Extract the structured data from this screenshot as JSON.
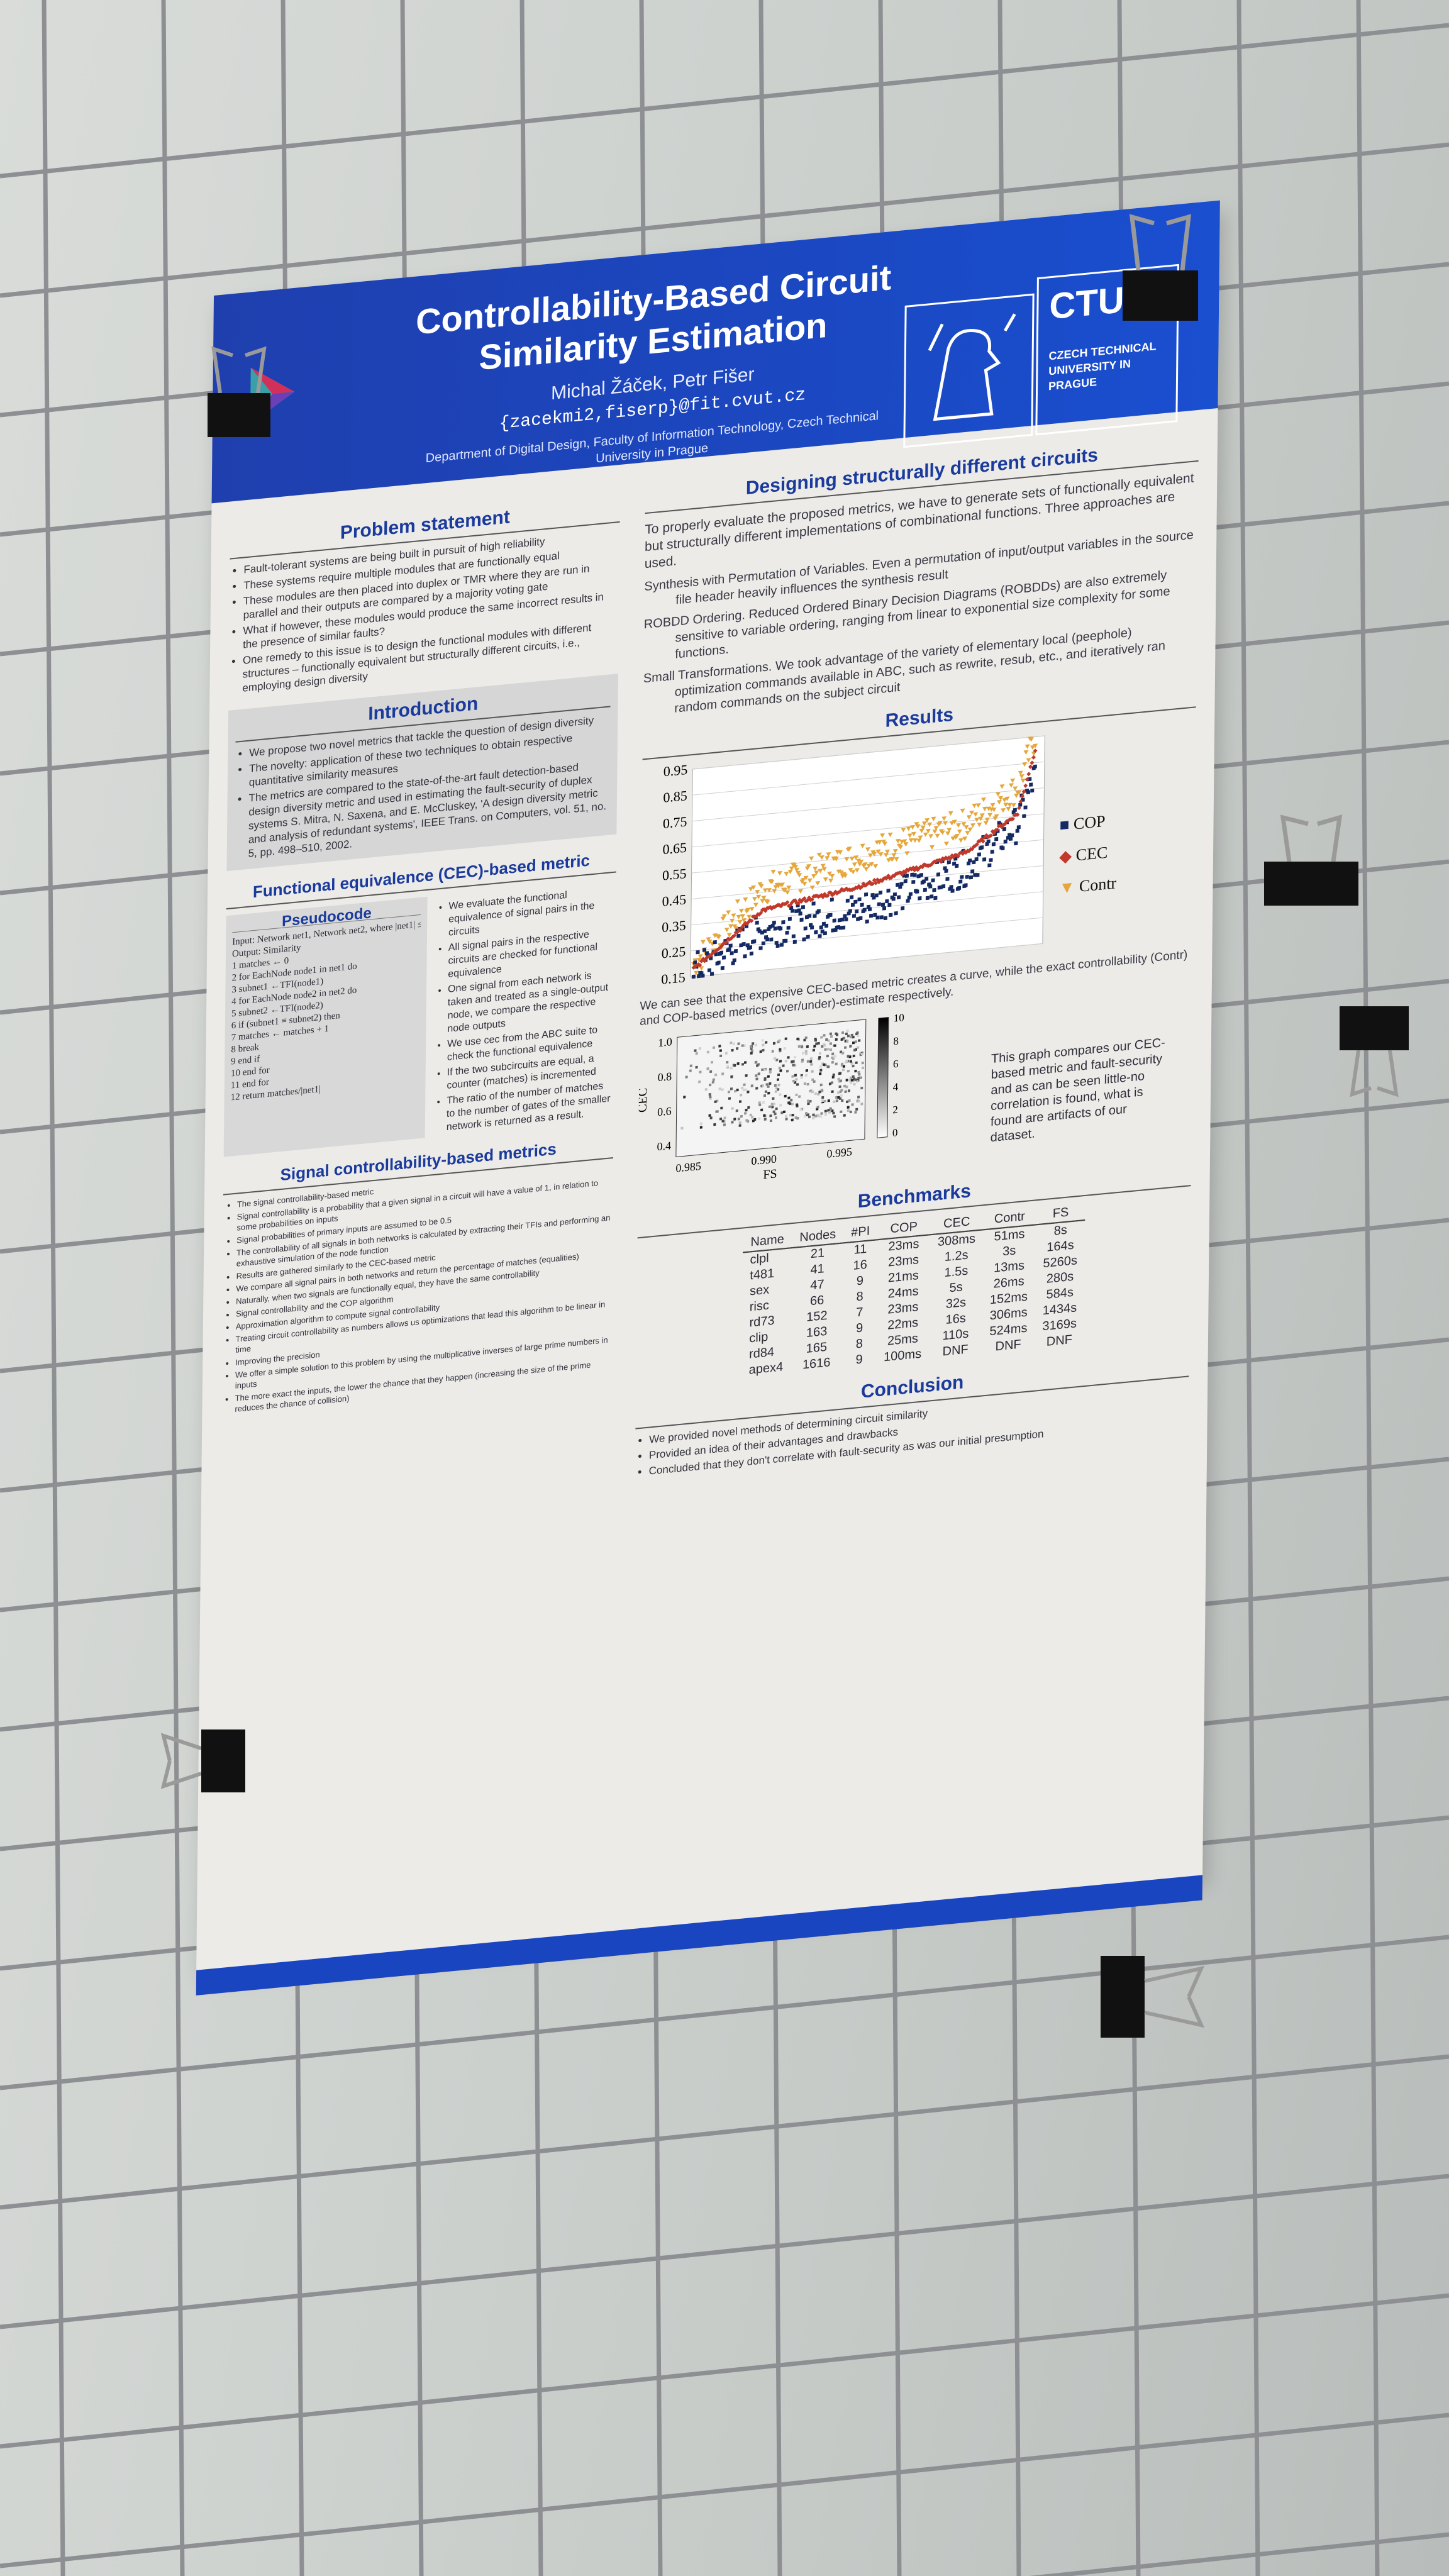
{
  "poster": {
    "title": "Controllability-Based Circuit Similarity Estimation",
    "authors": "Michal Žáček, Petr Fišer",
    "email": "{zacekmi2,fiserp}@fit.cvut.cz",
    "department": "Department of Digital Design, Faculty of Information Technology, Czech Technical University in Prague",
    "logo": {
      "word": "CTU",
      "subtitle": "CZECH TECHNICAL UNIVERSITY IN PRAGUE"
    }
  },
  "problem": {
    "heading": "Problem statement",
    "bullets": [
      "Fault-tolerant systems are being built in pursuit of high reliability",
      "These systems require multiple modules that are functionally equal",
      "These modules are then placed into duplex or TMR where they are run in parallel and their outputs are compared by a majority voting gate",
      "What if however, these modules would produce the same incorrect results in the presence of similar faults?",
      "One remedy to this issue is to design the functional modules with different structures – functionally equivalent but structurally different circuits, i.e., employing design diversity"
    ]
  },
  "introduction": {
    "heading": "Introduction",
    "bullets": [
      "We propose two novel metrics that tackle the question of design diversity",
      "The novelty: application of these two techniques to obtain respective quantitative similarity measures",
      "The metrics are compared to the state-of-the-art fault detection-based design diversity metric and used in estimating the fault-security of duplex systems S. Mitra, N. Saxena, and E. McCluskey, 'A design diversity metric and analysis of redundant systems', IEEE Trans. on Computers, vol. 51, no. 5, pp. 498–510, 2002."
    ]
  },
  "cec_metric": {
    "heading": "Functional equivalence (CEC)-based metric",
    "pseudocode_title": "Pseudocode",
    "pseudocode": [
      "Input: Network net1, Network net2, where |net1| ≤ |net2|",
      "Output: Similarity",
      "1  matches ← 0",
      "2  for EachNode node1 in net1 do",
      "3    subnet1 ←TFI(node1)",
      "4    for EachNode node2 in net2 do",
      "5      subnet2 ←TFI(node2)",
      "6      if (subnet1 ≡ subnet2) then",
      "7        matches ← matches + 1",
      "8        break",
      "9      end if",
      "10   end for",
      "11 end for",
      "12 return matches/|net1|"
    ],
    "bullets": [
      "We evaluate the functional equivalence of signal pairs in the circuits",
      "All signal pairs in the respective circuits are checked for functional equivalence",
      "One signal from each network is taken and treated as a single-output node, we compare the respective node outputs",
      "We use cec from the ABC suite to check the functional equivalence",
      "If the two subcircuits are equal, a counter (matches) is incremented",
      "The ratio of the number of matches to the number of gates of the smaller network is returned as a result."
    ]
  },
  "signal_metric": {
    "heading": "Signal controllability-based metrics",
    "bullets": [
      "The signal controllability-based metric",
      "Signal controllability is a probability that a given signal in a circuit will have a value of 1, in relation to some probabilities on inputs",
      "Signal probabilities of primary inputs are assumed to be 0.5",
      "The controllability of all signals in both networks is calculated by extracting their TFIs and performing an exhaustive simulation of the node function",
      "Results are gathered similarly to the CEC-based metric",
      "We compare all signal pairs in both networks and return the percentage of matches (equalities)",
      "Naturally, when two signals are functionally equal, they have the same controllability",
      "Signal controllability and the COP algorithm",
      "Approximation algorithm to compute signal controllability",
      "Treating circuit controllability as numbers allows us optimizations that lead this algorithm to be linear in time",
      "Improving the precision",
      "We offer a simple solution to this problem by using the multiplicative inverses of large prime numbers in inputs",
      "The more exact the inputs, the lower the chance that they happen (increasing the size of the prime reduces the chance of collision)"
    ]
  },
  "designing": {
    "heading": "Designing structurally different circuits",
    "intro": "To properly evaluate the proposed metrics, we have to generate sets of functionally equivalent but structurally different implementations of combinational functions. Three approaches are used.",
    "items": [
      "Synthesis with Permutation of Variables.  Even a permutation of input/output variables in the source file header heavily influences the synthesis result",
      "ROBDD Ordering.  Reduced Ordered Binary Decision Diagrams (ROBDDs) are also extremely sensitive to variable ordering, ranging from linear to exponential size complexity for some functions.",
      "Small Transformations.  We took advantage of the variety of elementary local (peephole) optimization commands available in ABC, such as rewrite, resub, etc., and iteratively ran random commands on the subject circuit"
    ]
  },
  "results": {
    "heading": "Results",
    "caption1": "We can see that the expensive CEC-based metric creates a curve, while the exact controllability (Contr) and COP-based metrics (over/under)-estimate respectively.",
    "caption2": "This graph compares our CEC-based metric and fault-security and as can be seen little-no correlation is found, what is found are artifacts of our dataset."
  },
  "chart_data": [
    {
      "type": "scatter",
      "yticks": [
        "0.95",
        "0.85",
        "0.75",
        "0.65",
        "0.55",
        "0.45",
        "0.35",
        "0.25",
        "0.15"
      ],
      "ylim": [
        0.15,
        0.95
      ],
      "grid": true,
      "legend_placement": "right",
      "series": [
        {
          "name": "COP",
          "color": "#152a63",
          "marker": "square",
          "trend": [
            [
              0,
              0.17
            ],
            [
              0.2,
              0.3
            ],
            [
              0.5,
              0.35
            ],
            [
              0.8,
              0.47
            ],
            [
              0.95,
              0.62
            ],
            [
              1,
              0.8
            ]
          ]
        },
        {
          "name": "CEC",
          "color": "#c0392b",
          "marker": "diamond",
          "trend": [
            [
              0,
              0.18
            ],
            [
              0.2,
              0.38
            ],
            [
              0.5,
              0.44
            ],
            [
              0.8,
              0.53
            ],
            [
              0.95,
              0.66
            ],
            [
              1,
              0.9
            ]
          ]
        },
        {
          "name": "Contr",
          "color": "#e5a73c",
          "marker": "triangle",
          "trend": [
            [
              0,
              0.2
            ],
            [
              0.2,
              0.46
            ],
            [
              0.5,
              0.56
            ],
            [
              0.8,
              0.64
            ],
            [
              0.95,
              0.76
            ],
            [
              1,
              0.95
            ]
          ]
        }
      ]
    },
    {
      "type": "heatmap",
      "xlabel": "FS",
      "ylabel": "CEC",
      "xticks": [
        "0.985",
        "0.990",
        "0.995"
      ],
      "yticks": [
        "1.0",
        "0.8",
        "0.6",
        "0.4"
      ],
      "xlim": [
        0.985,
        1.0
      ],
      "ylim": [
        0.3,
        1.0
      ],
      "colorbar_ticks": [
        "10",
        "8",
        "6",
        "4",
        "2",
        "0"
      ]
    }
  ],
  "benchmarks": {
    "heading": "Benchmarks",
    "columns": [
      "Name",
      "Nodes",
      "#PI",
      "COP",
      "CEC",
      "Contr",
      "FS"
    ],
    "rows": [
      [
        "clpl",
        "21",
        "11",
        "23ms",
        "308ms",
        "51ms",
        "8s"
      ],
      [
        "t481",
        "41",
        "16",
        "23ms",
        "1.2s",
        "3s",
        "164s"
      ],
      [
        "sex",
        "47",
        "9",
        "21ms",
        "1.5s",
        "13ms",
        "5260s"
      ],
      [
        "risc",
        "66",
        "8",
        "24ms",
        "5s",
        "26ms",
        "280s"
      ],
      [
        "rd73",
        "152",
        "7",
        "23ms",
        "32s",
        "152ms",
        "584s"
      ],
      [
        "clip",
        "163",
        "9",
        "22ms",
        "16s",
        "306ms",
        "1434s"
      ],
      [
        "rd84",
        "165",
        "8",
        "25ms",
        "110s",
        "524ms",
        "3169s"
      ],
      [
        "apex4",
        "1616",
        "9",
        "100ms",
        "DNF",
        "DNF",
        "DNF"
      ]
    ]
  },
  "conclusion": {
    "heading": "Conclusion",
    "bullets": [
      "We provided novel methods of determining circuit similarity",
      "Provided an idea of their advantages and drawbacks",
      "Concluded that they don't correlate with fault-security as was our initial presumption"
    ]
  },
  "icons": [
    "binder-clip-icon",
    "ctu-lion-icon",
    "fit-triangle-logo-icon"
  ]
}
